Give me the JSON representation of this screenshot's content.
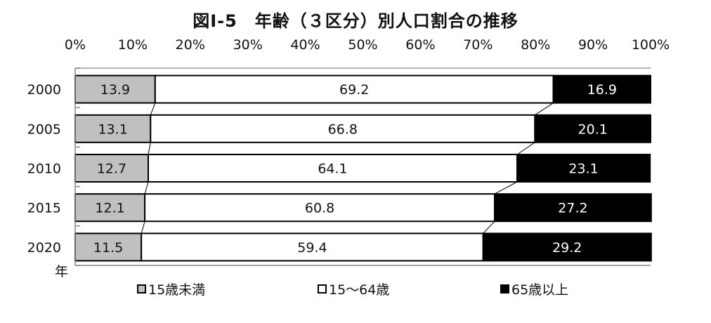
{
  "title": "図Ⅰ-5　年齢（３区分）別人口割合の推移",
  "colors": {
    "under15": "#c0c0c0",
    "age15to64": "#ffffff",
    "over65": "#000000"
  },
  "chart_data": {
    "type": "bar",
    "orientation": "horizontal",
    "stacked": true,
    "percent_stacked": true,
    "categories": [
      "2000",
      "2005",
      "2010",
      "2015",
      "2020"
    ],
    "category_axis_unit": "年",
    "xlim": [
      0,
      100
    ],
    "x_ticks": [
      "0%",
      "10%",
      "20%",
      "30%",
      "40%",
      "50%",
      "60%",
      "70%",
      "80%",
      "90%",
      "100%"
    ],
    "x_axis_position": "top",
    "grid": false,
    "series_connector_lines": true,
    "legend_position": "bottom",
    "series": [
      {
        "name": "15歳未満",
        "values": [
          13.9,
          13.1,
          12.7,
          12.1,
          11.5
        ],
        "value_labels": [
          "13.9",
          "13.1",
          "12.7",
          "12.1",
          "11.5"
        ]
      },
      {
        "name": "15～64歳",
        "values": [
          69.2,
          66.8,
          64.1,
          60.8,
          59.4
        ],
        "value_labels": [
          "69.2",
          "66.8",
          "64.1",
          "60.8",
          "59.4"
        ]
      },
      {
        "name": "65歳以上",
        "values": [
          16.9,
          20.1,
          23.1,
          27.2,
          29.2
        ],
        "value_labels": [
          "16.9",
          "20.1",
          "23.1",
          "27.2",
          "29.2"
        ]
      }
    ]
  }
}
